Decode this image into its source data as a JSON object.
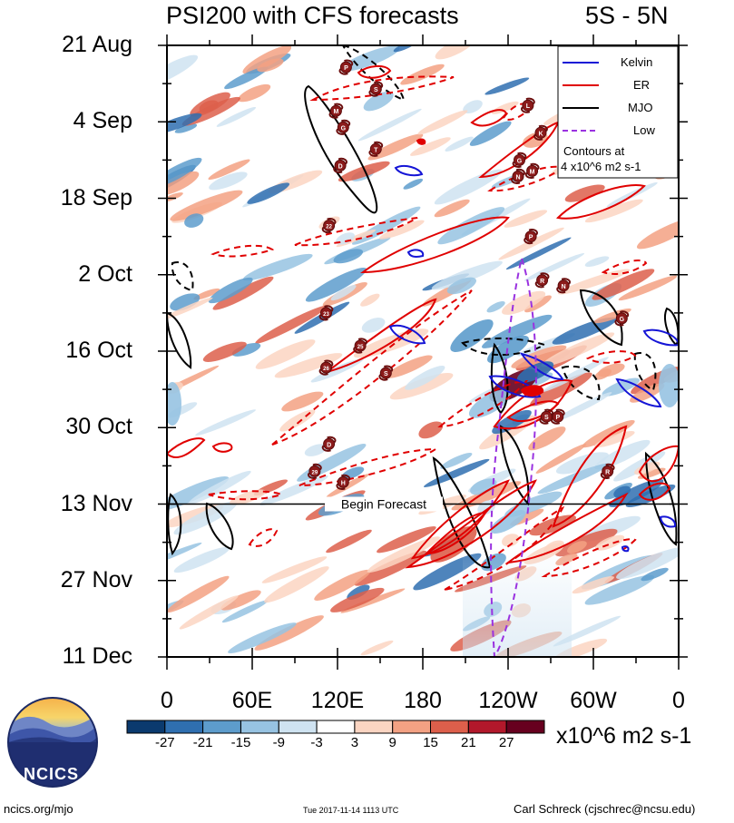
{
  "chart_data": {
    "type": "heatmap",
    "title": "PSI200 with CFS forecasts",
    "region": "5S - 5N",
    "y_tick_labels": [
      "21 Aug",
      "4 Sep",
      "18 Sep",
      "2 Oct",
      "16 Oct",
      "30 Oct",
      "13 Nov",
      "27 Nov",
      "11 Dec"
    ],
    "x_tick_labels": [
      "0",
      "60E",
      "120E",
      "180",
      "120W",
      "60W",
      "0"
    ],
    "x_range_deg_east": [
      0,
      360
    ],
    "y_range": [
      "21 Aug",
      "11 Dec"
    ],
    "forecast_start": "13 Nov",
    "forecast_label": "Begin Forecast",
    "colorbar": {
      "levels": [
        -27,
        -21,
        -15,
        -9,
        -3,
        3,
        9,
        15,
        21,
        27
      ],
      "colors": [
        "#0b3a6e",
        "#2f6fb0",
        "#5d9ccc",
        "#97c3e2",
        "#cfe3f1",
        "#ffffff",
        "#fbd5c2",
        "#f3a183",
        "#dd5f4b",
        "#b2182b",
        "#67001f"
      ],
      "units": "x10^6 m2 s-1"
    },
    "legend": [
      {
        "name": "Kelvin",
        "color": "#1515d6",
        "style": "solid"
      },
      {
        "name": "ER",
        "color": "#e00000",
        "style": "solid"
      },
      {
        "name": "MJO",
        "color": "#000000",
        "style": "solid"
      },
      {
        "name": "Low",
        "color": "#9a32e0",
        "style": "dashed"
      }
    ],
    "contour_note": [
      "Contours at",
      "4 x10^6 m2 s-1"
    ],
    "storms": [
      {
        "label": "P",
        "lon": 126,
        "date": "25 Aug"
      },
      {
        "label": "S",
        "lon": 147,
        "date": "29 Aug"
      },
      {
        "label": "M",
        "lon": 119,
        "date": "2 Sep"
      },
      {
        "label": "G",
        "lon": 124,
        "date": "5 Sep"
      },
      {
        "label": "T",
        "lon": 147,
        "date": "9 Sep"
      },
      {
        "label": "D",
        "lon": 122,
        "date": "12 Sep"
      },
      {
        "label": "L",
        "lon": 254,
        "date": "1 Sep"
      },
      {
        "label": "K",
        "lon": 263,
        "date": "6 Sep"
      },
      {
        "label": "G",
        "lon": 248,
        "date": "11 Sep"
      },
      {
        "label": "N",
        "lon": 247,
        "date": "14 Sep"
      },
      {
        "label": "M",
        "lon": 257,
        "date": "13 Sep"
      },
      {
        "label": "22",
        "lon": 114,
        "date": "23 Sep"
      },
      {
        "label": "P",
        "lon": 256,
        "date": "25 Sep"
      },
      {
        "label": "R",
        "lon": 264,
        "date": "3 Oct"
      },
      {
        "label": "N",
        "lon": 279,
        "date": "4 Oct"
      },
      {
        "label": "23",
        "lon": 112,
        "date": "9 Oct"
      },
      {
        "label": "G",
        "lon": 320,
        "date": "10 Oct"
      },
      {
        "label": "25",
        "lon": 136,
        "date": "15 Oct"
      },
      {
        "label": "26",
        "lon": 112,
        "date": "19 Oct"
      },
      {
        "label": "S",
        "lon": 154,
        "date": "20 Oct"
      },
      {
        "label": "S",
        "lon": 267,
        "date": "28 Oct"
      },
      {
        "label": "P",
        "lon": 275,
        "date": "28 Oct"
      },
      {
        "label": "D",
        "lon": 114,
        "date": "2 Nov"
      },
      {
        "label": "29",
        "lon": 104,
        "date": "7 Nov"
      },
      {
        "label": "H",
        "lon": 124,
        "date": "9 Nov"
      },
      {
        "label": "R",
        "lon": 310,
        "date": "7 Nov"
      }
    ],
    "colorbar_tick_labels": [
      "-27",
      "-21",
      "-15",
      "-9",
      "-3",
      "3",
      "9",
      "15",
      "21",
      "27"
    ]
  },
  "footer": {
    "left": "ncics.org/mjo",
    "center": "Tue 2017-11-14 1113 UTC",
    "right": "Carl Schreck (cjschrec@ncsu.edu)",
    "logo_text": "NCICS"
  }
}
